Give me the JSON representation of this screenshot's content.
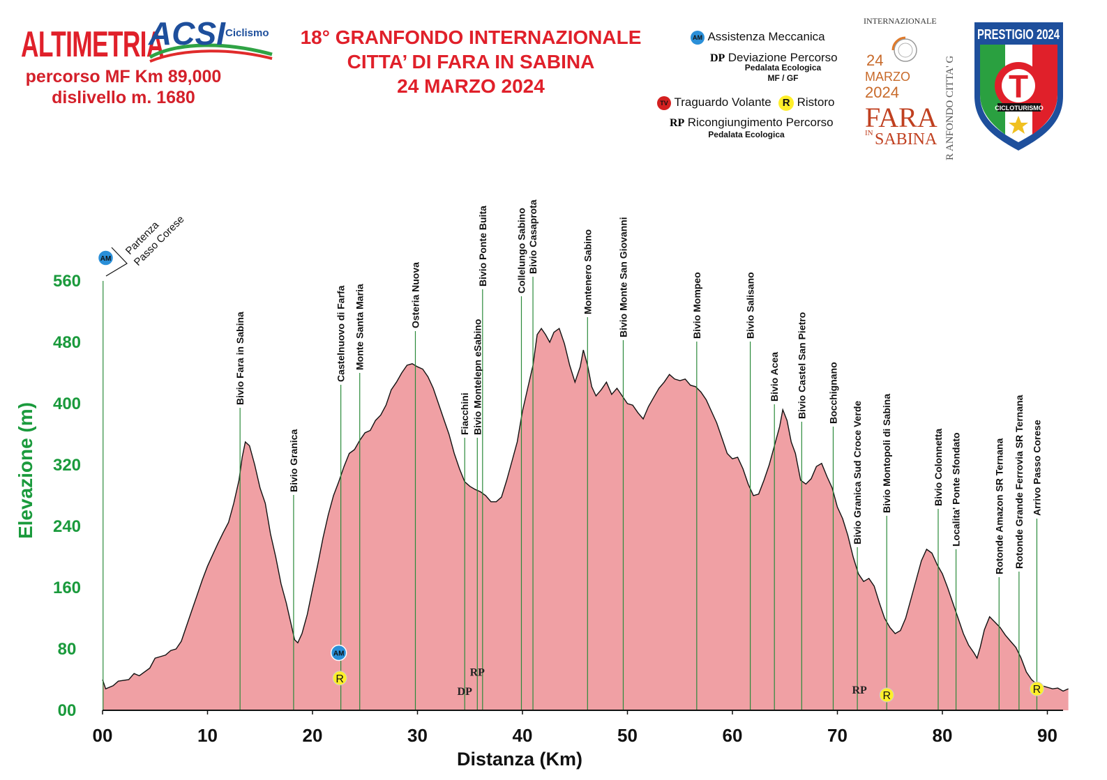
{
  "header": {
    "title": "ALTIMETRIA",
    "route": "percorso MF  Km 89,000",
    "climb": "dislivello m. 1680",
    "acsi_logo": {
      "letters": "ACSI",
      "word": "Ciclismo"
    }
  },
  "event": {
    "line1": "18° GRANFONDO INTERNAZIONALE",
    "line2": "CITTA’ DI FARA IN SABINA",
    "line3": "24 MARZO 2024"
  },
  "legend": {
    "am_badge": "AM",
    "am": "Assistenza Meccanica",
    "dp_abbr": "DP",
    "dp": "Deviazione Percorso",
    "dp_sub1": "Pedalata Ecologica",
    "dp_sub2": "MF / GF",
    "tv_badge": "TV",
    "tv": "Traguardo Volante",
    "r_badge": "R",
    "r": "Ristoro",
    "rp_abbr": "RP",
    "rp": "Ricongiungimento Percorso",
    "rp_sub": "Pedalata Ecologica"
  },
  "event_logo": {
    "top": "INTERNAZIONALE",
    "day": "24",
    "month": "MARZO",
    "year": "2024",
    "town1": "FARA",
    "town2a": "IN",
    "town2b": "SABINA",
    "side": "R  ANFONDO CITTA' G"
  },
  "prestigio": {
    "title": "PRESTIGIO 2024",
    "letter": "T",
    "band": "CICLOTURISMO"
  },
  "colors": {
    "fill": "#f0a0a4",
    "line": "#111111",
    "axis_labels": "#1a9a3c",
    "marker": "#2a8a3a",
    "title": "#e0202a"
  },
  "chart_data": {
    "type": "area",
    "xlabel": "Distanza (Km)",
    "ylabel": "Elevazione (m)",
    "xlim": [
      0,
      92
    ],
    "ylim": [
      0,
      560
    ],
    "x_ticks": [
      "00",
      "10",
      "20",
      "30",
      "40",
      "50",
      "60",
      "70",
      "80",
      "90"
    ],
    "y_ticks": [
      "00",
      "80",
      "160",
      "240",
      "320",
      "400",
      "480",
      "560"
    ],
    "grid": false,
    "profile": [
      [
        0,
        40
      ],
      [
        0.3,
        28
      ],
      [
        1,
        32
      ],
      [
        1.5,
        38
      ],
      [
        2.5,
        40
      ],
      [
        3,
        48
      ],
      [
        3.5,
        45
      ],
      [
        4.5,
        55
      ],
      [
        5,
        68
      ],
      [
        5.5,
        70
      ],
      [
        6,
        72
      ],
      [
        6.5,
        78
      ],
      [
        7,
        80
      ],
      [
        7.5,
        90
      ],
      [
        8,
        110
      ],
      [
        8.5,
        130
      ],
      [
        9,
        150
      ],
      [
        9.5,
        170
      ],
      [
        10,
        188
      ],
      [
        10.5,
        203
      ],
      [
        11,
        218
      ],
      [
        11.5,
        232
      ],
      [
        12,
        245
      ],
      [
        12.5,
        270
      ],
      [
        13,
        300
      ],
      [
        13.3,
        330
      ],
      [
        13.6,
        350
      ],
      [
        14,
        345
      ],
      [
        14.5,
        320
      ],
      [
        15,
        290
      ],
      [
        15.5,
        270
      ],
      [
        16,
        230
      ],
      [
        16.5,
        200
      ],
      [
        17,
        165
      ],
      [
        17.5,
        140
      ],
      [
        18,
        110
      ],
      [
        18.3,
        92
      ],
      [
        18.6,
        88
      ],
      [
        19,
        100
      ],
      [
        19.5,
        125
      ],
      [
        20,
        158
      ],
      [
        20.5,
        190
      ],
      [
        21,
        225
      ],
      [
        21.5,
        255
      ],
      [
        22,
        280
      ],
      [
        22.5,
        298
      ],
      [
        23,
        318
      ],
      [
        23.5,
        335
      ],
      [
        24,
        340
      ],
      [
        24.5,
        352
      ],
      [
        25,
        362
      ],
      [
        25.5,
        365
      ],
      [
        26,
        378
      ],
      [
        26.5,
        385
      ],
      [
        27,
        398
      ],
      [
        27.5,
        418
      ],
      [
        28,
        428
      ],
      [
        28.5,
        440
      ],
      [
        29,
        450
      ],
      [
        29.5,
        452
      ],
      [
        30,
        448
      ],
      [
        30.5,
        445
      ],
      [
        31,
        435
      ],
      [
        31.5,
        420
      ],
      [
        32,
        400
      ],
      [
        32.5,
        380
      ],
      [
        33,
        360
      ],
      [
        33.5,
        335
      ],
      [
        34,
        315
      ],
      [
        34.5,
        298
      ],
      [
        35,
        292
      ],
      [
        35.5,
        288
      ],
      [
        36,
        285
      ],
      [
        36.5,
        280
      ],
      [
        37,
        272
      ],
      [
        37.5,
        272
      ],
      [
        38,
        278
      ],
      [
        38.5,
        300
      ],
      [
        39,
        325
      ],
      [
        39.5,
        350
      ],
      [
        40,
        390
      ],
      [
        40.5,
        420
      ],
      [
        41,
        450
      ],
      [
        41.4,
        490
      ],
      [
        41.8,
        498
      ],
      [
        42.2,
        490
      ],
      [
        42.6,
        480
      ],
      [
        43,
        493
      ],
      [
        43.5,
        498
      ],
      [
        44,
        478
      ],
      [
        44.5,
        450
      ],
      [
        45,
        428
      ],
      [
        45.5,
        448
      ],
      [
        45.8,
        470
      ],
      [
        46.2,
        450
      ],
      [
        46.6,
        422
      ],
      [
        47,
        410
      ],
      [
        47.5,
        418
      ],
      [
        48,
        428
      ],
      [
        48.5,
        412
      ],
      [
        49,
        420
      ],
      [
        49.5,
        410
      ],
      [
        50,
        400
      ],
      [
        50.5,
        398
      ],
      [
        51,
        388
      ],
      [
        51.5,
        380
      ],
      [
        52,
        396
      ],
      [
        52.5,
        408
      ],
      [
        53,
        420
      ],
      [
        53.5,
        428
      ],
      [
        54,
        438
      ],
      [
        54.5,
        432
      ],
      [
        55,
        430
      ],
      [
        55.5,
        432
      ],
      [
        56,
        424
      ],
      [
        56.5,
        422
      ],
      [
        57,
        415
      ],
      [
        57.5,
        405
      ],
      [
        58,
        390
      ],
      [
        58.5,
        375
      ],
      [
        59,
        355
      ],
      [
        59.5,
        335
      ],
      [
        60,
        328
      ],
      [
        60.5,
        330
      ],
      [
        61,
        315
      ],
      [
        61.5,
        295
      ],
      [
        62,
        280
      ],
      [
        62.5,
        282
      ],
      [
        63,
        300
      ],
      [
        63.5,
        320
      ],
      [
        64,
        345
      ],
      [
        64.5,
        370
      ],
      [
        64.8,
        392
      ],
      [
        65.2,
        378
      ],
      [
        65.6,
        350
      ],
      [
        66,
        335
      ],
      [
        66.5,
        300
      ],
      [
        67,
        295
      ],
      [
        67.5,
        302
      ],
      [
        68,
        318
      ],
      [
        68.5,
        322
      ],
      [
        69,
        305
      ],
      [
        69.5,
        290
      ],
      [
        70,
        265
      ],
      [
        70.5,
        250
      ],
      [
        71,
        228
      ],
      [
        71.5,
        200
      ],
      [
        72,
        178
      ],
      [
        72.5,
        168
      ],
      [
        73,
        172
      ],
      [
        73.5,
        162
      ],
      [
        74,
        140
      ],
      [
        74.5,
        120
      ],
      [
        75,
        108
      ],
      [
        75.5,
        100
      ],
      [
        76,
        104
      ],
      [
        76.5,
        120
      ],
      [
        77,
        145
      ],
      [
        77.5,
        170
      ],
      [
        78,
        195
      ],
      [
        78.5,
        210
      ],
      [
        79,
        205
      ],
      [
        79.5,
        190
      ],
      [
        80,
        178
      ],
      [
        80.5,
        160
      ],
      [
        81,
        140
      ],
      [
        81.5,
        120
      ],
      [
        82,
        100
      ],
      [
        82.5,
        85
      ],
      [
        83,
        75
      ],
      [
        83.3,
        68
      ],
      [
        83.6,
        82
      ],
      [
        84,
        105
      ],
      [
        84.5,
        122
      ],
      [
        85,
        115
      ],
      [
        85.5,
        108
      ],
      [
        86,
        98
      ],
      [
        86.5,
        90
      ],
      [
        87,
        82
      ],
      [
        87.5,
        68
      ],
      [
        88,
        50
      ],
      [
        88.5,
        40
      ],
      [
        89,
        34
      ],
      [
        89.5,
        32
      ],
      [
        90,
        30
      ],
      [
        90.5,
        28
      ],
      [
        91,
        29
      ],
      [
        91.5,
        25
      ],
      [
        92,
        28
      ]
    ],
    "waypoints": [
      {
        "label": "Bivio Fara in Sabina",
        "km": 13.1
      },
      {
        "label": "Bivio Granica",
        "km": 18.2
      },
      {
        "label": "Castelnuovo di Farfa",
        "km": 22.7
      },
      {
        "label": "Monte Santa Maria",
        "km": 24.5
      },
      {
        "label": "Osteria Nuova",
        "km": 29.8
      },
      {
        "label": "Fiacchini",
        "km": 34.5
      },
      {
        "label": "Bivio Montelepn eSabino",
        "km": 35.7
      },
      {
        "label": "Bivio  Ponte Buita",
        "km": 36.2
      },
      {
        "label": "Collelungo  Sabino",
        "km": 39.9
      },
      {
        "label": "Bivio Casaprota",
        "km": 41.0
      },
      {
        "label": "Montenero Sabino",
        "km": 46.2
      },
      {
        "label": "Bivio Monte  San Giovanni",
        "km": 49.6
      },
      {
        "label": "Bivio Mompeo",
        "km": 56.6
      },
      {
        "label": "Bivio Salisano",
        "km": 61.7
      },
      {
        "label": "Bivio  Acea",
        "km": 64.0
      },
      {
        "label": "Bivio Castel San Pietro",
        "km": 66.6
      },
      {
        "label": "Bocchignano",
        "km": 69.6
      },
      {
        "label": "Bivio  Granica  Sud Croce  Verde",
        "km": 71.9
      },
      {
        "label": "Bivio Montopoli di  Sabina",
        "km": 74.7
      },
      {
        "label": "Bivio Colonnetta",
        "km": 79.6
      },
      {
        "label": "Localita' Ponte Sfondato",
        "km": 81.3
      },
      {
        "label": "Rotonde  Amazon   SR Ternana",
        "km": 85.4
      },
      {
        "label": "Rotonde  Grande   Ferrovia SR Ternana",
        "km": 87.3
      },
      {
        "label": "Arrivo Passo Corese",
        "km": 89.0
      }
    ],
    "start_label1": "Partenza",
    "start_label2": "Passo Corese",
    "markers": [
      {
        "type": "AM",
        "km": 0.3,
        "elev": 590
      },
      {
        "type": "AM",
        "km": 22.5,
        "elev": 75
      },
      {
        "type": "R",
        "km": 22.6,
        "elev": 42
      },
      {
        "type": "DP",
        "km": 34.5,
        "elev": 20
      },
      {
        "type": "RP",
        "km": 35.7,
        "elev": 45
      },
      {
        "type": "RP",
        "km": 72.1,
        "elev": 22
      },
      {
        "type": "R",
        "km": 74.7,
        "elev": 20
      },
      {
        "type": "R",
        "km": 89.0,
        "elev": 28
      }
    ]
  }
}
